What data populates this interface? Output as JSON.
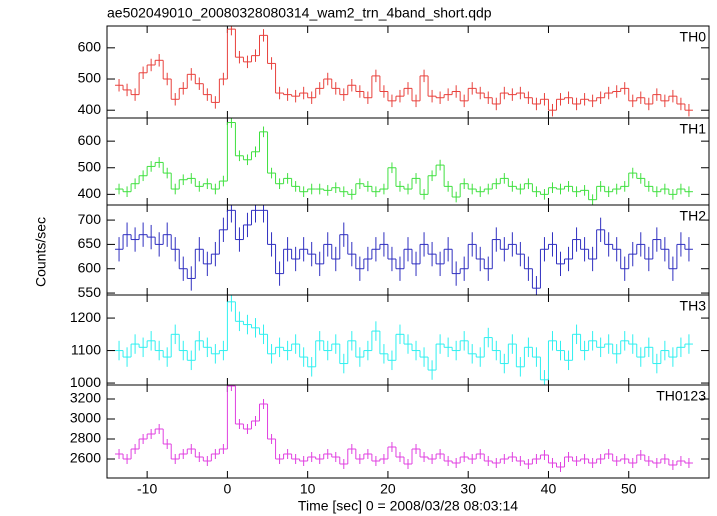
{
  "figure": {
    "title": "ae502049010_20080328080314_wam2_trn_4band_short.qdp",
    "xlabel": "Time [sec] 0 = 2008/03/28 08:03:14",
    "ylabel": "Counts/sec"
  },
  "chart_data": [
    {
      "type": "step",
      "xlim": [
        -15,
        60
      ],
      "xticks": [
        -10,
        0,
        10,
        20,
        30,
        40,
        50
      ],
      "ylim": [
        375,
        670
      ],
      "yticks": [
        400,
        500,
        600
      ],
      "x": [
        -13.5,
        -12.5,
        -11.5,
        -10.5,
        -9.5,
        -8.5,
        -7.5,
        -6.5,
        -5.5,
        -4.5,
        -3.5,
        -2.5,
        -1.5,
        -0.5,
        0.5,
        1.5,
        2.5,
        3.5,
        4.5,
        5.5,
        6.5,
        7.5,
        8.5,
        9.5,
        10.5,
        11.5,
        12.5,
        13.5,
        14.5,
        15.5,
        16.5,
        17.5,
        18.5,
        19.5,
        20.5,
        21.5,
        22.5,
        23.5,
        24.5,
        25.5,
        26.5,
        27.5,
        28.5,
        29.5,
        30.5,
        31.5,
        32.5,
        33.5,
        34.5,
        35.5,
        36.5,
        37.5,
        38.5,
        39.5,
        40.5,
        41.5,
        42.5,
        43.5,
        44.5,
        45.5,
        46.5,
        47.5,
        48.5,
        49.5,
        50.5,
        51.5,
        52.5,
        53.5,
        54.5,
        55.5,
        56.5,
        57.5
      ],
      "series": [
        {
          "name": "TH0",
          "color": "#e8413c",
          "error": 20,
          "values": [
            480,
            465,
            450,
            520,
            545,
            560,
            500,
            435,
            470,
            515,
            485,
            450,
            425,
            500,
            660,
            570,
            555,
            575,
            640,
            550,
            455,
            450,
            445,
            455,
            440,
            470,
            500,
            470,
            450,
            480,
            460,
            440,
            510,
            460,
            430,
            445,
            470,
            430,
            510,
            445,
            440,
            450,
            460,
            430,
            470,
            455,
            440,
            420,
            455,
            450,
            455,
            440,
            420,
            435,
            400,
            435,
            440,
            420,
            435,
            430,
            440,
            455,
            460,
            470,
            430,
            440,
            420,
            450,
            430,
            445,
            420,
            400
          ]
        }
      ]
    },
    {
      "type": "step",
      "xlim": [
        -15,
        60
      ],
      "xticks": [
        -10,
        0,
        10,
        20,
        30,
        40,
        50
      ],
      "ylim": [
        360,
        687
      ],
      "yticks": [
        400,
        500,
        600
      ],
      "x": [
        -13.5,
        -12.5,
        -11.5,
        -10.5,
        -9.5,
        -8.5,
        -7.5,
        -6.5,
        -5.5,
        -4.5,
        -3.5,
        -2.5,
        -1.5,
        -0.5,
        0.5,
        1.5,
        2.5,
        3.5,
        4.5,
        5.5,
        6.5,
        7.5,
        8.5,
        9.5,
        10.5,
        11.5,
        12.5,
        13.5,
        14.5,
        15.5,
        16.5,
        17.5,
        18.5,
        19.5,
        20.5,
        21.5,
        22.5,
        23.5,
        24.5,
        25.5,
        26.5,
        27.5,
        28.5,
        29.5,
        30.5,
        31.5,
        32.5,
        33.5,
        34.5,
        35.5,
        36.5,
        37.5,
        38.5,
        39.5,
        40.5,
        41.5,
        42.5,
        43.5,
        44.5,
        45.5,
        46.5,
        47.5,
        48.5,
        49.5,
        50.5,
        51.5,
        52.5,
        53.5,
        54.5,
        55.5,
        56.5,
        57.5
      ],
      "series": [
        {
          "name": "TH1",
          "color": "#3fe03f",
          "error": 20,
          "values": [
            420,
            410,
            440,
            470,
            505,
            520,
            480,
            420,
            455,
            460,
            430,
            440,
            420,
            450,
            670,
            545,
            530,
            560,
            635,
            480,
            440,
            460,
            430,
            410,
            420,
            420,
            415,
            425,
            410,
            400,
            440,
            430,
            410,
            420,
            500,
            430,
            420,
            460,
            400,
            470,
            510,
            430,
            390,
            440,
            420,
            410,
            420,
            440,
            460,
            430,
            420,
            440,
            410,
            400,
            425,
            420,
            430,
            410,
            415,
            380,
            430,
            410,
            420,
            430,
            480,
            460,
            430,
            410,
            420,
            400,
            420,
            410
          ]
        }
      ]
    },
    {
      "type": "step",
      "xlim": [
        -15,
        60
      ],
      "xticks": [
        -10,
        0,
        10,
        20,
        30,
        40,
        50
      ],
      "ylim": [
        546,
        731
      ],
      "yticks": [
        550,
        600,
        650,
        700
      ],
      "x": [
        -13.5,
        -12.5,
        -11.5,
        -10.5,
        -9.5,
        -8.5,
        -7.5,
        -6.5,
        -5.5,
        -4.5,
        -3.5,
        -2.5,
        -1.5,
        -0.5,
        0.5,
        1.5,
        2.5,
        3.5,
        4.5,
        5.5,
        6.5,
        7.5,
        8.5,
        9.5,
        10.5,
        11.5,
        12.5,
        13.5,
        14.5,
        15.5,
        16.5,
        17.5,
        18.5,
        19.5,
        20.5,
        21.5,
        22.5,
        23.5,
        24.5,
        25.5,
        26.5,
        27.5,
        28.5,
        29.5,
        30.5,
        31.5,
        32.5,
        33.5,
        34.5,
        35.5,
        36.5,
        37.5,
        38.5,
        39.5,
        40.5,
        41.5,
        42.5,
        43.5,
        44.5,
        45.5,
        46.5,
        47.5,
        48.5,
        49.5,
        50.5,
        51.5,
        52.5,
        53.5,
        54.5,
        55.5,
        56.5,
        57.5
      ],
      "series": [
        {
          "name": "TH2",
          "color": "#2f2fc0",
          "error": 25,
          "values": [
            640,
            670,
            660,
            670,
            665,
            650,
            670,
            640,
            600,
            580,
            640,
            610,
            630,
            680,
            720,
            660,
            690,
            720,
            720,
            650,
            590,
            640,
            620,
            640,
            630,
            610,
            650,
            620,
            670,
            630,
            600,
            620,
            640,
            650,
            620,
            600,
            640,
            610,
            650,
            630,
            610,
            640,
            590,
            600,
            650,
            620,
            600,
            660,
            640,
            650,
            630,
            600,
            560,
            640,
            650,
            610,
            620,
            660,
            640,
            620,
            680,
            650,
            640,
            600,
            630,
            650,
            620,
            660,
            640,
            600,
            650,
            640
          ]
        }
      ]
    },
    {
      "type": "step",
      "xlim": [
        -15,
        60
      ],
      "xticks": [
        -10,
        0,
        10,
        20,
        30,
        40,
        50
      ],
      "ylim": [
        994,
        1271
      ],
      "yticks": [
        1000,
        1100,
        1200
      ],
      "x": [
        -13.5,
        -12.5,
        -11.5,
        -10.5,
        -9.5,
        -8.5,
        -7.5,
        -6.5,
        -5.5,
        -4.5,
        -3.5,
        -2.5,
        -1.5,
        -0.5,
        0.5,
        1.5,
        2.5,
        3.5,
        4.5,
        5.5,
        6.5,
        7.5,
        8.5,
        9.5,
        10.5,
        11.5,
        12.5,
        13.5,
        14.5,
        15.5,
        16.5,
        17.5,
        18.5,
        19.5,
        20.5,
        21.5,
        22.5,
        23.5,
        24.5,
        25.5,
        26.5,
        27.5,
        28.5,
        29.5,
        30.5,
        31.5,
        32.5,
        33.5,
        34.5,
        35.5,
        36.5,
        37.5,
        38.5,
        39.5,
        40.5,
        41.5,
        42.5,
        43.5,
        44.5,
        45.5,
        46.5,
        47.5,
        48.5,
        49.5,
        50.5,
        51.5,
        52.5,
        53.5,
        54.5,
        55.5,
        56.5,
        57.5
      ],
      "series": [
        {
          "name": "TH3",
          "color": "#2ff0f0",
          "error": 30,
          "values": [
            1100,
            1080,
            1120,
            1110,
            1130,
            1100,
            1080,
            1150,
            1100,
            1070,
            1130,
            1110,
            1090,
            1100,
            1250,
            1190,
            1180,
            1170,
            1150,
            1090,
            1110,
            1100,
            1120,
            1080,
            1050,
            1130,
            1100,
            1120,
            1060,
            1130,
            1080,
            1100,
            1160,
            1090,
            1070,
            1150,
            1120,
            1100,
            1080,
            1040,
            1120,
            1110,
            1100,
            1130,
            1090,
            1080,
            1140,
            1100,
            1060,
            1120,
            1050,
            1110,
            1080,
            1010,
            1130,
            1100,
            1070,
            1150,
            1100,
            1130,
            1110,
            1120,
            1090,
            1130,
            1120,
            1080,
            1110,
            1060,
            1100,
            1080,
            1110,
            1120
          ]
        }
      ]
    },
    {
      "type": "step",
      "xlim": [
        -15,
        60
      ],
      "xticks": [
        -10,
        0,
        10,
        20,
        30,
        40,
        50
      ],
      "ylim": [
        2410,
        3340
      ],
      "yticks": [
        2600,
        2800,
        3000,
        3200
      ],
      "x": [
        -13.5,
        -12.5,
        -11.5,
        -10.5,
        -9.5,
        -8.5,
        -7.5,
        -6.5,
        -5.5,
        -4.5,
        -3.5,
        -2.5,
        -1.5,
        -0.5,
        0.5,
        1.5,
        2.5,
        3.5,
        4.5,
        5.5,
        6.5,
        7.5,
        8.5,
        9.5,
        10.5,
        11.5,
        12.5,
        13.5,
        14.5,
        15.5,
        16.5,
        17.5,
        18.5,
        19.5,
        20.5,
        21.5,
        22.5,
        23.5,
        24.5,
        25.5,
        26.5,
        27.5,
        28.5,
        29.5,
        30.5,
        31.5,
        32.5,
        33.5,
        34.5,
        35.5,
        36.5,
        37.5,
        38.5,
        39.5,
        40.5,
        41.5,
        42.5,
        43.5,
        44.5,
        45.5,
        46.5,
        47.5,
        48.5,
        49.5,
        50.5,
        51.5,
        52.5,
        53.5,
        54.5,
        55.5,
        56.5,
        57.5
      ],
      "series": [
        {
          "name": "TH0123",
          "color": "#e040e0",
          "error": 50,
          "values": [
            2650,
            2600,
            2700,
            2800,
            2850,
            2900,
            2750,
            2600,
            2650,
            2700,
            2620,
            2580,
            2650,
            2700,
            3330,
            2950,
            2900,
            2980,
            3150,
            2800,
            2600,
            2650,
            2600,
            2580,
            2620,
            2600,
            2650,
            2620,
            2550,
            2700,
            2600,
            2650,
            2580,
            2600,
            2720,
            2620,
            2550,
            2700,
            2620,
            2600,
            2650,
            2580,
            2560,
            2620,
            2600,
            2650,
            2580,
            2560,
            2600,
            2620,
            2580,
            2550,
            2600,
            2640,
            2560,
            2520,
            2620,
            2580,
            2600,
            2560,
            2600,
            2650,
            2580,
            2600,
            2560,
            2640,
            2580,
            2560,
            2600,
            2540,
            2580,
            2560
          ]
        }
      ]
    }
  ]
}
